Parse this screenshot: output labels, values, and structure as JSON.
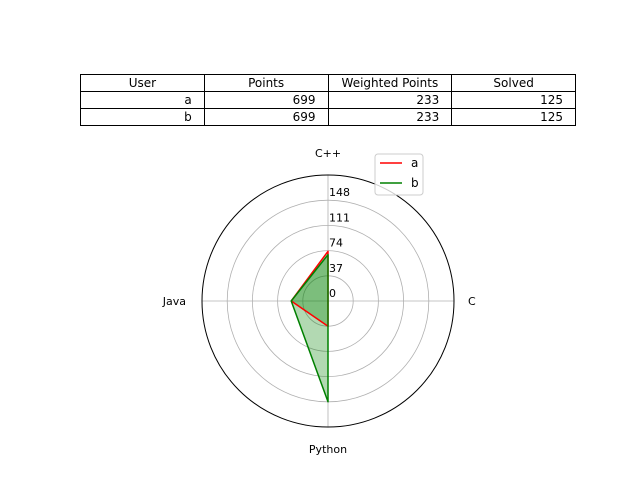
{
  "table": {
    "headers": [
      "User",
      "Points",
      "Weighted Points",
      "Solved"
    ],
    "rows": [
      [
        "a",
        "699",
        "233",
        "125"
      ],
      [
        "b",
        "699",
        "233",
        "125"
      ]
    ]
  },
  "chart_data": {
    "type": "radar",
    "categories": [
      "C++",
      "C",
      "Python",
      "Java"
    ],
    "radial_ticks": [
      "0",
      "37",
      "74",
      "111",
      "148"
    ],
    "rlim": [
      0,
      185
    ],
    "grid": true,
    "legend_position": "top-right",
    "series": [
      {
        "name": "a",
        "color": "#ff0000",
        "values": [
          73,
          0,
          37,
          54
        ]
      },
      {
        "name": "b",
        "color": "#008000",
        "values": [
          68,
          0,
          148,
          54
        ]
      }
    ],
    "fill_color": "#008000",
    "fill_alpha": 0.3
  }
}
